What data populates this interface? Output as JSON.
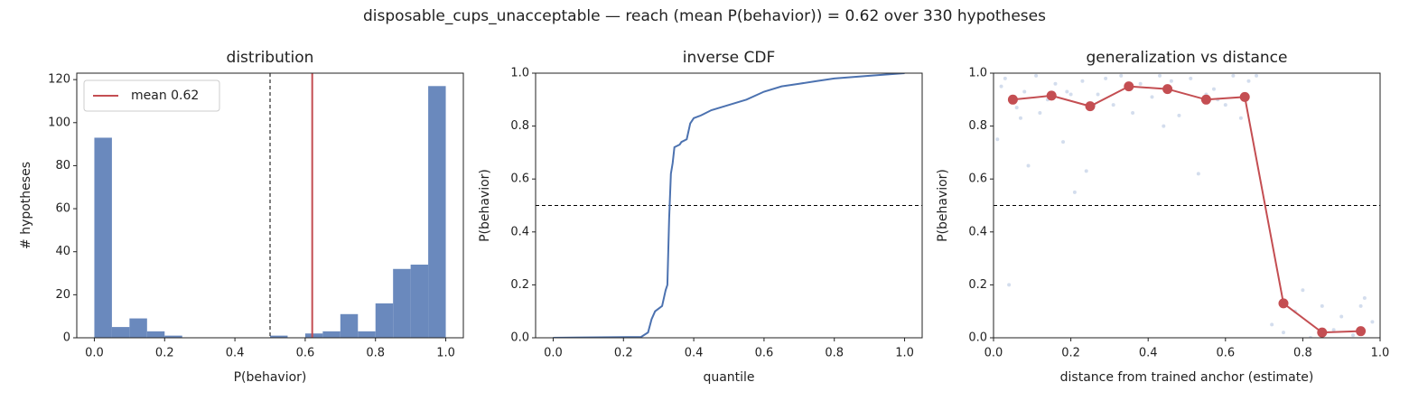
{
  "title": "disposable_cups_unacceptable  —  reach (mean P(behavior)) = 0.62  over 330 hypotheses",
  "chart_data": [
    {
      "type": "histogram",
      "title": "distribution",
      "xlabel": "P(behavior)",
      "ylabel": "# hypotheses",
      "bins": [
        0,
        0.05,
        0.1,
        0.15,
        0.2,
        0.25,
        0.3,
        0.35,
        0.4,
        0.45,
        0.5,
        0.55,
        0.6,
        0.65,
        0.7,
        0.75,
        0.8,
        0.85,
        0.9,
        0.95,
        1.0
      ],
      "counts": [
        93,
        5,
        9,
        3,
        1,
        0,
        0,
        0,
        0,
        0,
        1,
        0,
        2,
        3,
        11,
        3,
        16,
        32,
        34,
        117
      ],
      "color": "#6a89bd",
      "xlim": [
        -0.05,
        1.05
      ],
      "xticks": [
        {
          "value": 0,
          "label": "0.0"
        },
        0.2,
        0.4,
        0.6,
        0.8,
        {
          "value": 1,
          "label": "1.0"
        }
      ],
      "ylim": [
        0,
        123
      ],
      "yticks": [
        0,
        20,
        40,
        60,
        80,
        100,
        120
      ],
      "threshold": 0.5,
      "vline": {
        "name": "mean 0.62",
        "value": 0.62,
        "color": "#c44e52"
      },
      "legend": "upper left"
    },
    {
      "type": "line",
      "title": "inverse CDF",
      "xlabel": "quantile",
      "ylabel": "P(behavior)",
      "x": [
        0,
        0.25,
        0.27,
        0.28,
        0.29,
        0.31,
        0.32,
        0.325,
        0.33,
        0.335,
        0.34,
        0.345,
        0.36,
        0.365,
        0.38,
        0.39,
        0.4,
        0.42,
        0.45,
        0.5,
        0.55,
        0.6,
        0.65,
        0.7,
        0.75,
        0.8,
        0.9,
        1.0
      ],
      "y": [
        0,
        0.003,
        0.02,
        0.07,
        0.1,
        0.12,
        0.18,
        0.2,
        0.45,
        0.62,
        0.66,
        0.72,
        0.73,
        0.74,
        0.75,
        0.81,
        0.83,
        0.84,
        0.86,
        0.88,
        0.9,
        0.93,
        0.95,
        0.96,
        0.97,
        0.98,
        0.99,
        1.0
      ],
      "color": "#4c72b0",
      "xlim": [
        -0.05,
        1.05
      ],
      "xticks": [
        {
          "value": 0,
          "label": "0.0"
        },
        0.2,
        0.4,
        0.6,
        0.8,
        {
          "value": 1,
          "label": "1.0"
        }
      ],
      "ylim": [
        0,
        1
      ],
      "yticks": [
        {
          "value": 0,
          "label": "0.0"
        },
        0.2,
        0.4,
        0.6,
        0.8,
        {
          "value": 1,
          "label": "1.0"
        }
      ],
      "threshold": 0.5
    },
    {
      "type": "scatter",
      "title": "generalization vs distance",
      "xlabel": "distance from trained anchor (estimate)",
      "ylabel": "P(behavior)",
      "scatter": {
        "color": "#9db3d6",
        "x": [
          0.01,
          0.03,
          0.04,
          0.06,
          0.08,
          0.09,
          0.11,
          0.12,
          0.14,
          0.16,
          0.18,
          0.19,
          0.21,
          0.23,
          0.24,
          0.27,
          0.29,
          0.31,
          0.33,
          0.36,
          0.38,
          0.41,
          0.43,
          0.46,
          0.48,
          0.51,
          0.53,
          0.55,
          0.57,
          0.6,
          0.62,
          0.64,
          0.66,
          0.68,
          0.02,
          0.07,
          0.2,
          0.26,
          0.44,
          0.58,
          0.72,
          0.75,
          0.78,
          0.82,
          0.85,
          0.88,
          0.9,
          0.93,
          0.96,
          0.98,
          0.8,
          0.95
        ],
        "y": [
          0.75,
          0.98,
          0.2,
          0.87,
          0.93,
          0.65,
          0.99,
          0.85,
          0.9,
          0.96,
          0.74,
          0.93,
          0.55,
          0.97,
          0.63,
          0.92,
          0.98,
          0.88,
          0.99,
          0.85,
          0.96,
          0.91,
          0.99,
          0.97,
          0.84,
          0.98,
          0.62,
          0.92,
          0.94,
          0.88,
          0.99,
          0.83,
          0.97,
          0.99,
          0.95,
          0.83,
          0.92,
          0.88,
          0.8,
          0.9,
          0.05,
          0.02,
          0.1,
          0.0,
          0.12,
          0.03,
          0.08,
          0.01,
          0.15,
          0.06,
          0.18,
          0.12
        ]
      },
      "line": {
        "color": "#c44e52",
        "x": [
          0.05,
          0.15,
          0.25,
          0.35,
          0.45,
          0.55,
          0.65,
          0.75,
          0.85,
          0.95
        ],
        "y": [
          0.9,
          0.915,
          0.875,
          0.95,
          0.94,
          0.9,
          0.91,
          0.13,
          0.02,
          0.025
        ]
      },
      "xlim": [
        0,
        1
      ],
      "xticks": [
        {
          "value": 0,
          "label": "0.0"
        },
        0.2,
        0.4,
        0.6,
        0.8,
        {
          "value": 1,
          "label": "1.0"
        }
      ],
      "ylim": [
        0,
        1
      ],
      "yticks": [
        {
          "value": 0,
          "label": "0.0"
        },
        0.2,
        0.4,
        0.6,
        0.8,
        {
          "value": 1,
          "label": "1.0"
        }
      ],
      "threshold": 0.5
    }
  ]
}
